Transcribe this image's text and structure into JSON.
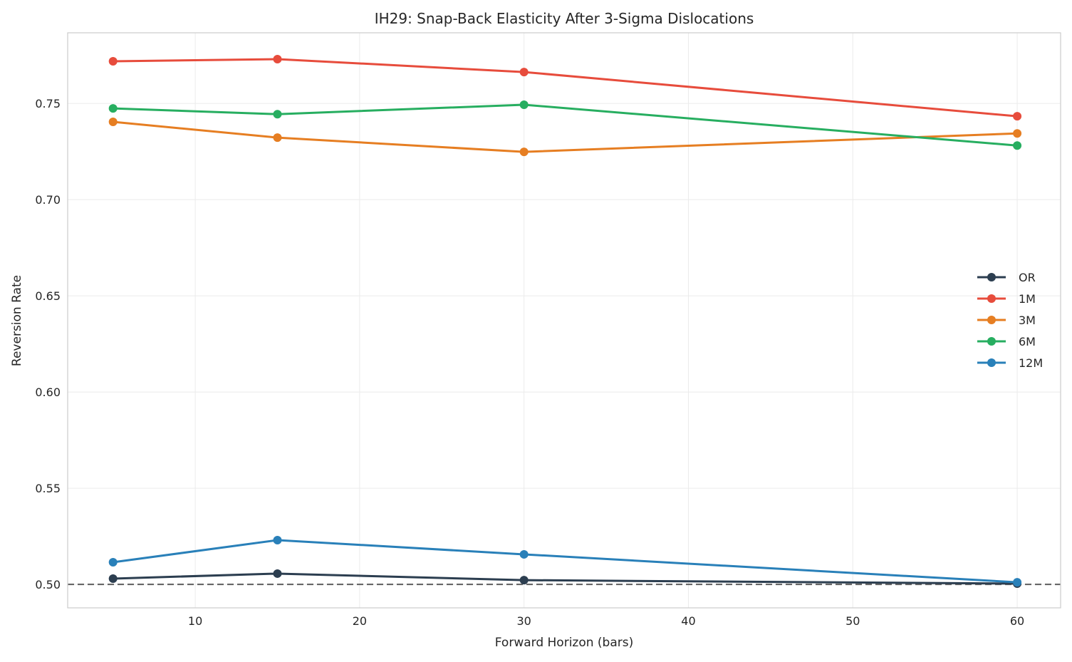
{
  "chart_data": {
    "type": "line",
    "title": "IH29: Snap-Back Elasticity After 3-Sigma Dislocations",
    "xlabel": "Forward Horizon (bars)",
    "ylabel": "Reversion Rate",
    "xlim": [
      2.24,
      62.64
    ],
    "ylim": [
      0.4878,
      0.7867
    ],
    "xticks": [
      10,
      20,
      30,
      40,
      50,
      60
    ],
    "yticks": [
      0.5,
      0.55,
      0.6,
      0.65,
      0.7,
      0.75
    ],
    "xtick_labels": [
      "10",
      "20",
      "30",
      "40",
      "50",
      "60"
    ],
    "ytick_labels": [
      "0.50",
      "0.55",
      "0.60",
      "0.65",
      "0.70",
      "0.75"
    ],
    "grid": true,
    "legend_placement": "center-right",
    "x": [
      5,
      15,
      30,
      60
    ],
    "series": [
      {
        "name": "OR",
        "color": "#2c3e50",
        "values": [
          0.503,
          0.5056,
          0.5022,
          0.5004
        ]
      },
      {
        "name": "1M",
        "color": "#e74c3c",
        "values": [
          0.7719,
          0.773,
          0.7663,
          0.7433
        ]
      },
      {
        "name": "3M",
        "color": "#e67e22",
        "values": [
          0.7404,
          0.7322,
          0.7248,
          0.7344
        ]
      },
      {
        "name": "6M",
        "color": "#27ae60",
        "values": [
          0.7474,
          0.7444,
          0.7493,
          0.7281
        ]
      },
      {
        "name": "12M",
        "color": "#2980b9",
        "values": [
          0.5115,
          0.523,
          0.5156,
          0.5011
        ]
      }
    ],
    "reference_line": {
      "y": 0.5,
      "style": "dashed",
      "color": "#666666"
    }
  }
}
